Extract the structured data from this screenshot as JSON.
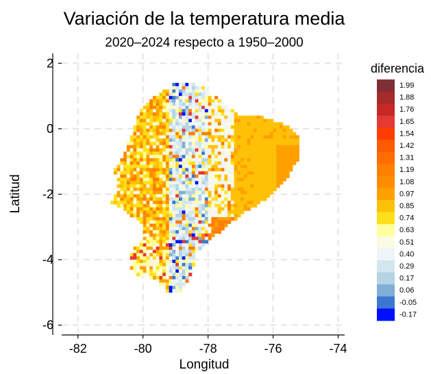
{
  "title": "Variación de la temperatura media",
  "subtitle": "2020–2024 respecto a 1950–2000",
  "axes": {
    "xlabel": "Longitud",
    "ylabel": "Latitud",
    "xticks": [
      "-82",
      "-80",
      "-78",
      "-76",
      "-74"
    ],
    "yticks": [
      "2",
      "0",
      "-2",
      "-4",
      "-6"
    ],
    "xlim": [
      -82.5,
      -73.8
    ],
    "ylim": [
      -6.3,
      2.3
    ],
    "grid": true,
    "grid_style": "dashed"
  },
  "legend": {
    "title": "diferencia",
    "placement": "right",
    "entries": [
      {
        "label": "1.99",
        "color": "#7f2f36"
      },
      {
        "label": "1.88",
        "color": "#a52a2a"
      },
      {
        "label": "1.76",
        "color": "#c62828"
      },
      {
        "label": "1.65",
        "color": "#e53935"
      },
      {
        "label": "1.54",
        "color": "#ff3d00"
      },
      {
        "label": "1.42",
        "color": "#ff5a00"
      },
      {
        "label": "1.31",
        "color": "#ff6d00"
      },
      {
        "label": "1.19",
        "color": "#ff7f00"
      },
      {
        "label": "1.08",
        "color": "#ff8c00"
      },
      {
        "label": "0.97",
        "color": "#ffa000"
      },
      {
        "label": "0.85",
        "color": "#ffc107"
      },
      {
        "label": "0.74",
        "color": "#ffe01a"
      },
      {
        "label": "0.63",
        "color": "#ffffa0"
      },
      {
        "label": "0.51",
        "color": "#fbfbe4"
      },
      {
        "label": "0.40",
        "color": "#eef4f8"
      },
      {
        "label": "0.29",
        "color": "#d4e6ef"
      },
      {
        "label": "0.17",
        "color": "#b4d4e4"
      },
      {
        "label": "0.06",
        "color": "#80aed6"
      },
      {
        "label": "-0.05",
        "color": "#3d78d0"
      },
      {
        "label": "-0.17",
        "color": "#0010ff"
      }
    ]
  }
}
